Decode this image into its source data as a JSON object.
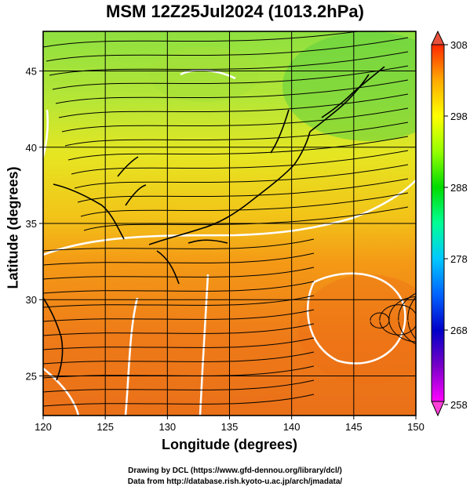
{
  "title": "MSM 12Z25Jul2024 (1013.2hPa)",
  "xlabel": "Longitude (degrees)",
  "ylabel": "Latitude  (degrees)",
  "credits": [
    "Drawing by DCL (https://www.gfd-dennou.org/library/dcl/)",
    "Data from http://database.rish.kyoto-u.ac.jp/arch/jmadata/"
  ],
  "map": {
    "lon_range": [
      120,
      150
    ],
    "lat_range": [
      22.4,
      47.6
    ],
    "lon_ticks": [
      "120",
      "125",
      "130",
      "135",
      "140",
      "145",
      "150"
    ],
    "lat_ticks": [
      "25",
      "30",
      "35",
      "40",
      "45"
    ],
    "grid_interval_deg": 5
  },
  "colorbar": {
    "unit_range": [
      258,
      308
    ],
    "labels": [
      "308",
      "298",
      "288",
      "278",
      "268",
      "258"
    ],
    "colors_bottom_to_top": [
      "#ff00ff",
      "#0000c8",
      "#0064ff",
      "#00c8ff",
      "#00ff96",
      "#00dc00",
      "#96ff00",
      "#ffff00",
      "#ffaa00",
      "#ff6400",
      "#ff2800"
    ]
  },
  "colors": {
    "background": "#ffffff",
    "coast": "#000000",
    "streamline": "#000000",
    "contour": "#ffffff"
  }
}
